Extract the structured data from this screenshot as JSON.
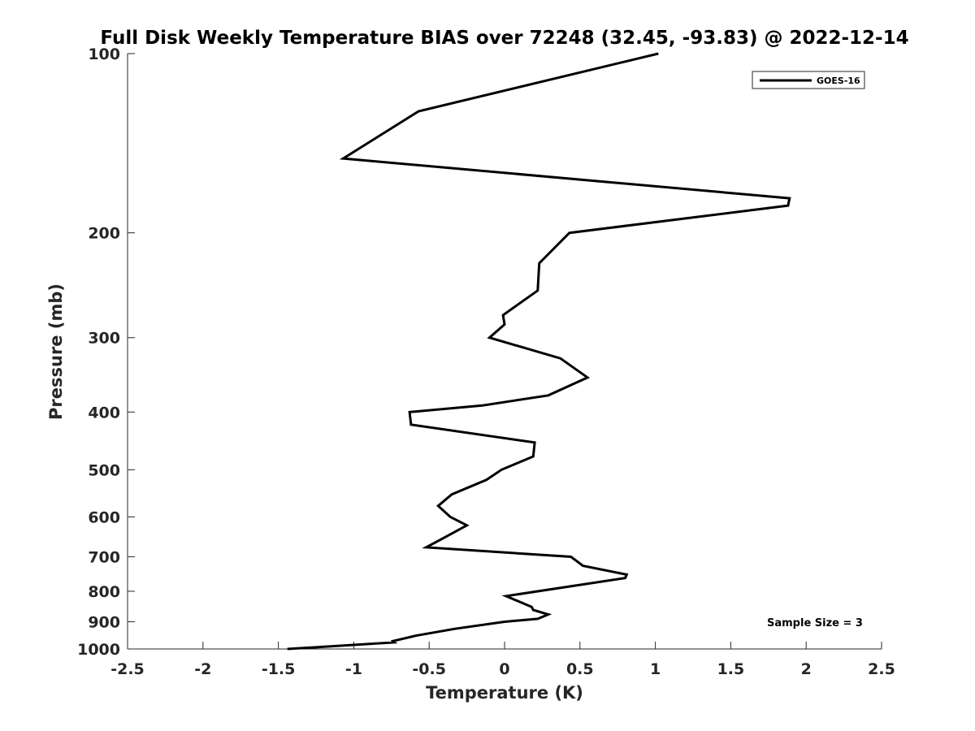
{
  "chart_data": {
    "type": "line",
    "title": "Full Disk Weekly Temperature BIAS over 72248 (32.45, -93.83) @ 2022-12-14",
    "xlabel": "Temperature (K)",
    "ylabel": "Pressure (mb)",
    "xlim": [
      -2.5,
      2.5
    ],
    "ylim": [
      1000,
      100
    ],
    "y_scale": "log",
    "y_reversed": true,
    "x_ticks": [
      "-2.5",
      "-2",
      "-1.5",
      "-1",
      "-0.5",
      "0",
      "0.5",
      "1",
      "1.5",
      "2",
      "2.5"
    ],
    "y_ticks": [
      "100",
      "200",
      "300",
      "400",
      "500",
      "600",
      "700",
      "800",
      "900",
      "1000"
    ],
    "grid": false,
    "legend_position": "top-right",
    "series": [
      {
        "name": "GOES-16",
        "color": "#000000",
        "points": [
          {
            "x": 1.02,
            "y": 100
          },
          {
            "x": -0.57,
            "y": 125
          },
          {
            "x": -1.07,
            "y": 150
          },
          {
            "x": 1.89,
            "y": 175
          },
          {
            "x": 1.88,
            "y": 180
          },
          {
            "x": 0.43,
            "y": 200
          },
          {
            "x": 0.23,
            "y": 225
          },
          {
            "x": 0.22,
            "y": 250
          },
          {
            "x": -0.01,
            "y": 275
          },
          {
            "x": 0.0,
            "y": 285
          },
          {
            "x": -0.1,
            "y": 300
          },
          {
            "x": 0.37,
            "y": 325
          },
          {
            "x": 0.55,
            "y": 350
          },
          {
            "x": 0.29,
            "y": 375
          },
          {
            "x": -0.15,
            "y": 390
          },
          {
            "x": -0.63,
            "y": 400
          },
          {
            "x": -0.62,
            "y": 420
          },
          {
            "x": 0.2,
            "y": 450
          },
          {
            "x": 0.19,
            "y": 475
          },
          {
            "x": -0.02,
            "y": 500
          },
          {
            "x": -0.12,
            "y": 520
          },
          {
            "x": -0.35,
            "y": 550
          },
          {
            "x": -0.44,
            "y": 575
          },
          {
            "x": -0.36,
            "y": 600
          },
          {
            "x": -0.25,
            "y": 620
          },
          {
            "x": -0.4,
            "y": 650
          },
          {
            "x": -0.52,
            "y": 675
          },
          {
            "x": 0.44,
            "y": 700
          },
          {
            "x": 0.52,
            "y": 725
          },
          {
            "x": 0.81,
            "y": 750
          },
          {
            "x": 0.8,
            "y": 760
          },
          {
            "x": 0.01,
            "y": 815
          },
          {
            "x": 0.18,
            "y": 850
          },
          {
            "x": 0.19,
            "y": 860
          },
          {
            "x": 0.29,
            "y": 875
          },
          {
            "x": 0.22,
            "y": 890
          },
          {
            "x": 0.0,
            "y": 900
          },
          {
            "x": -0.33,
            "y": 925
          },
          {
            "x": -0.59,
            "y": 950
          },
          {
            "x": -0.74,
            "y": 970
          },
          {
            "x": -0.73,
            "y": 975
          },
          {
            "x": -1.44,
            "y": 1000
          }
        ]
      }
    ],
    "annotation": "Sample Size = 3"
  }
}
